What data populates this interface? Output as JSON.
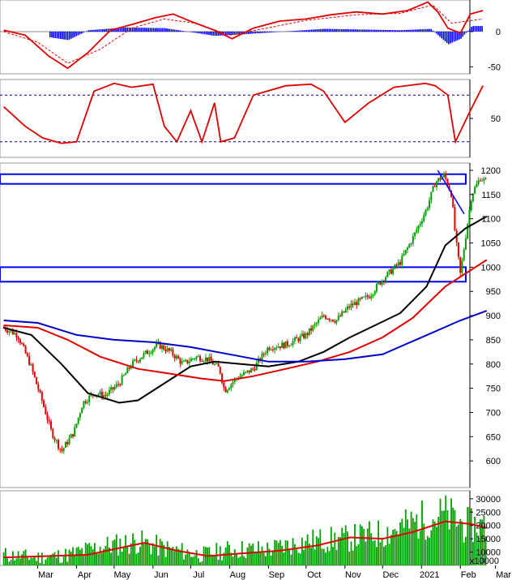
{
  "chart_data": [
    {
      "type": "line",
      "panel": "macd",
      "y_ticks": [
        0,
        -50
      ],
      "y_tick_labels": [
        "0",
        "-50"
      ],
      "ylim": [
        -60,
        45
      ],
      "grid": false,
      "colors": {
        "macd": "#e00000",
        "signal": "#e00000",
        "histogram": "#0000ff"
      },
      "series": [
        {
          "name": "",
          "x": [
            "2020-02-03",
            "2020-02-20",
            "2020-03-10",
            "2020-03-25",
            "2020-04-10",
            "2020-04-28",
            "2020-05-15",
            "2020-06-03",
            "2020-06-17",
            "2020-07-02",
            "2020-07-20",
            "2020-08-03",
            "2020-08-20",
            "2020-09-10",
            "2020-10-01",
            "2020-10-21",
            "2020-11-10",
            "2020-12-01",
            "2020-12-21",
            "2021-01-06",
            "2021-01-14",
            "2021-01-22",
            "2021-02-01",
            "2021-02-09",
            "2021-02-19"
          ],
          "values": [
            2,
            -5,
            -35,
            -52,
            -30,
            2,
            10,
            20,
            25,
            14,
            2,
            -10,
            5,
            15,
            18,
            24,
            28,
            25,
            30,
            42,
            28,
            5,
            -2,
            25,
            30
          ]
        },
        {
          "name": "",
          "x": [
            "2020-02-03",
            "2020-03-01",
            "2020-03-25",
            "2020-04-20",
            "2020-05-15",
            "2020-06-10",
            "2020-07-05",
            "2020-08-01",
            "2020-08-25",
            "2020-10-01",
            "2020-11-10",
            "2020-12-15",
            "2021-01-10",
            "2021-01-25",
            "2021-02-19"
          ],
          "values": [
            0,
            -15,
            -45,
            -25,
            5,
            18,
            12,
            -5,
            3,
            16,
            24,
            26,
            38,
            12,
            18
          ]
        },
        {
          "name": "",
          "x": [
            "2020-03-10",
            "2020-03-25",
            "2020-04-10",
            "2020-05-10",
            "2020-06-10",
            "2020-07-20",
            "2020-08-10",
            "2020-10-15",
            "2020-12-15",
            "2021-01-08",
            "2021-01-22",
            "2021-02-01",
            "2021-02-10"
          ],
          "values": [
            -8,
            -12,
            2,
            6,
            5,
            -6,
            -4,
            4,
            2,
            4,
            -18,
            -10,
            8
          ]
        }
      ]
    },
    {
      "type": "line",
      "panel": "stochastic",
      "y_ticks": [
        50
      ],
      "y_tick_labels": [
        "50"
      ],
      "ylim": [
        0,
        100
      ],
      "reference_lines": [
        80,
        20
      ],
      "colors": {
        "line": "#e00000"
      },
      "series": [
        {
          "name": "",
          "x": [
            "2020-02-03",
            "2020-02-20",
            "2020-03-05",
            "2020-03-20",
            "2020-04-01",
            "2020-04-15",
            "2020-05-01",
            "2020-05-15",
            "2020-06-01",
            "2020-06-10",
            "2020-06-20",
            "2020-07-01",
            "2020-07-10",
            "2020-07-20",
            "2020-07-25",
            "2020-08-05",
            "2020-08-20",
            "2020-09-15",
            "2020-10-05",
            "2020-10-15",
            "2020-11-01",
            "2020-11-20",
            "2020-12-10",
            "2021-01-04",
            "2021-01-12",
            "2021-01-22",
            "2021-01-28",
            "2021-02-09",
            "2021-02-19"
          ],
          "values": [
            65,
            40,
            25,
            18,
            20,
            85,
            95,
            90,
            94,
            40,
            20,
            60,
            20,
            70,
            20,
            25,
            80,
            92,
            94,
            85,
            45,
            70,
            90,
            95,
            92,
            80,
            20,
            60,
            92
          ]
        }
      ]
    },
    {
      "type": "candlestick",
      "panel": "price",
      "y_ticks": [
        600,
        650,
        700,
        750,
        800,
        850,
        900,
        950,
        1000,
        1050,
        1100,
        1150,
        1200
      ],
      "y_tick_labels": [
        "600",
        "650",
        "700",
        "750",
        "800",
        "850",
        "900",
        "950",
        "1000",
        "1050",
        "1100",
        "1150",
        "1200"
      ],
      "ylim": [
        545,
        1215
      ],
      "x_tick_labels": [
        "Mar",
        "Apr",
        "May",
        "Jun",
        "Jul",
        "Aug",
        "Sep",
        "Oct",
        "Nov",
        "Dec",
        "2021",
        "Feb",
        "Mar"
      ],
      "colors": {
        "up": "#00a000",
        "down": "#e00000",
        "ma_black": "#000000",
        "ma_red": "#e00000",
        "ma_blue": "#0000cc",
        "zones": "#0000ff"
      },
      "close": {
        "x": [
          "2020-02-03",
          "2020-02-14",
          "2020-02-24",
          "2020-03-05",
          "2020-03-12",
          "2020-03-20",
          "2020-03-30",
          "2020-04-06",
          "2020-04-15",
          "2020-04-24",
          "2020-05-05",
          "2020-05-15",
          "2020-05-25",
          "2020-06-05",
          "2020-06-15",
          "2020-06-25",
          "2020-07-05",
          "2020-07-15",
          "2020-07-24",
          "2020-07-28",
          "2020-08-06",
          "2020-08-20",
          "2020-09-01",
          "2020-09-15",
          "2020-10-01",
          "2020-10-15",
          "2020-10-25",
          "2020-11-05",
          "2020-11-20",
          "2020-12-01",
          "2020-12-15",
          "2020-12-25",
          "2021-01-05",
          "2021-01-12",
          "2021-01-19",
          "2021-01-25",
          "2021-01-28",
          "2021-02-01",
          "2021-02-05",
          "2021-02-10",
          "2021-02-17",
          "2021-02-22"
        ],
        "values": [
          875,
          860,
          800,
          720,
          660,
          620,
          660,
          720,
          740,
          735,
          760,
          800,
          820,
          840,
          825,
          800,
          815,
          810,
          790,
          745,
          770,
          790,
          835,
          840,
          860,
          900,
          890,
          920,
          940,
          975,
          1010,
          1060,
          1120,
          1175,
          1190,
          1150,
          1065,
          985,
          1060,
          1150,
          1185,
          1175
        ]
      },
      "moving_averages": [
        {
          "name": "",
          "color": "#000000",
          "x": [
            "2020-02-03",
            "2020-02-25",
            "2020-03-20",
            "2020-04-10",
            "2020-05-05",
            "2020-05-20",
            "2020-06-10",
            "2020-07-01",
            "2020-07-20",
            "2020-08-10",
            "2020-09-01",
            "2020-09-25",
            "2020-10-15",
            "2020-11-05",
            "2020-11-25",
            "2020-12-15",
            "2021-01-05",
            "2021-01-20",
            "2021-02-05",
            "2021-02-22"
          ],
          "values": [
            875,
            860,
            800,
            740,
            720,
            725,
            760,
            795,
            805,
            800,
            795,
            805,
            825,
            855,
            880,
            905,
            960,
            1045,
            1080,
            1105
          ]
        },
        {
          "name": "",
          "color": "#e00000",
          "x": [
            "2020-02-03",
            "2020-03-01",
            "2020-03-25",
            "2020-04-20",
            "2020-05-20",
            "2020-06-15",
            "2020-07-10",
            "2020-07-28",
            "2020-08-20",
            "2020-09-15",
            "2020-10-10",
            "2020-11-05",
            "2020-12-01",
            "2020-12-25",
            "2021-01-20",
            "2021-02-22"
          ],
          "values": [
            880,
            875,
            850,
            815,
            790,
            780,
            770,
            765,
            775,
            790,
            805,
            825,
            855,
            895,
            960,
            1015
          ]
        },
        {
          "name": "",
          "color": "#0000cc",
          "x": [
            "2020-02-03",
            "2020-03-01",
            "2020-04-01",
            "2020-05-01",
            "2020-06-01",
            "2020-07-01",
            "2020-08-01",
            "2020-09-01",
            "2020-10-01",
            "2020-11-01",
            "2020-12-01",
            "2021-01-01",
            "2021-02-01",
            "2021-02-22"
          ],
          "values": [
            890,
            885,
            860,
            850,
            845,
            835,
            820,
            805,
            805,
            810,
            820,
            855,
            890,
            910
          ]
        }
      ],
      "zones": [
        [
          1172,
          1192
        ],
        [
          970,
          1000
        ]
      ],
      "trendline": {
        "x": [
          "2021-01-14",
          "2021-02-04"
        ],
        "values": [
          1200,
          1110
        ]
      }
    },
    {
      "type": "bar",
      "panel": "volume",
      "y_ticks": [
        10000,
        15000,
        20000,
        25000,
        30000
      ],
      "y_tick_labels": [
        "10000",
        "15000",
        "20000",
        "25000",
        "30000"
      ],
      "y_unit_label": "x10000",
      "ylim": [
        5000,
        33000
      ],
      "colors": {
        "bars": "#00a000",
        "ma": "#e00000"
      },
      "values_profile": {
        "x": [
          "2020-02-03",
          "2020-03-01",
          "2020-03-25",
          "2020-04-20",
          "2020-05-20",
          "2020-06-15",
          "2020-07-10",
          "2020-08-01",
          "2020-09-01",
          "2020-10-01",
          "2020-11-01",
          "2020-12-01",
          "2021-01-01",
          "2021-01-20",
          "2021-02-05",
          "2021-02-22"
        ],
        "values": [
          9000,
          8000,
          9000,
          12000,
          14000,
          11000,
          9000,
          11000,
          11000,
          14000,
          15000,
          17000,
          22000,
          24000,
          20000,
          20000
        ]
      },
      "ma": {
        "name": "",
        "x": [
          "2020-02-03",
          "2020-03-10",
          "2020-04-10",
          "2020-05-10",
          "2020-05-25",
          "2020-06-20",
          "2020-07-15",
          "2020-08-10",
          "2020-09-10",
          "2020-10-10",
          "2020-11-05",
          "2020-12-01",
          "2020-12-25",
          "2021-01-20",
          "2021-02-10",
          "2021-02-22"
        ],
        "values": [
          8000,
          8500,
          9000,
          12000,
          13500,
          10500,
          8500,
          9500,
          10500,
          12500,
          15500,
          15000,
          17500,
          21500,
          20500,
          19000
        ]
      }
    }
  ],
  "x_axis": {
    "labels": [
      "Mar",
      "Apr",
      "May",
      "Jun",
      "Jul",
      "Aug",
      "Sep",
      "Oct",
      "Nov",
      "Dec",
      "2021",
      "Feb",
      "Mar"
    ]
  }
}
